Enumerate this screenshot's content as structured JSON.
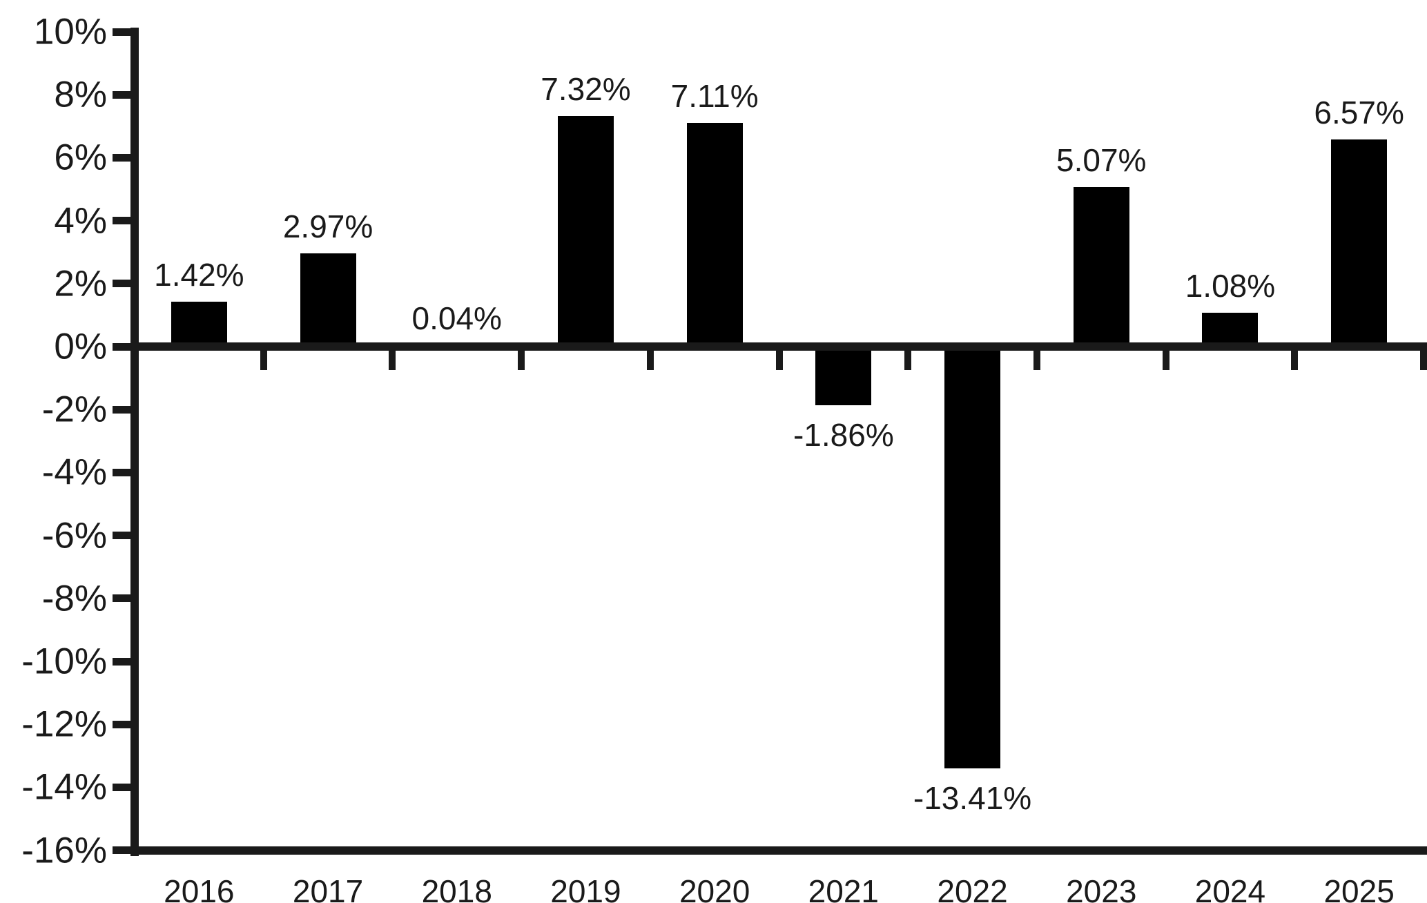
{
  "chart_data": {
    "type": "bar",
    "title": "",
    "xlabel": "",
    "ylabel": "",
    "categories": [
      "2016",
      "2017",
      "2018",
      "2019",
      "2020",
      "2021",
      "2022",
      "2023",
      "2024",
      "2025"
    ],
    "values": [
      1.42,
      2.97,
      0.04,
      7.32,
      7.11,
      -1.86,
      -13.41,
      5.07,
      1.08,
      6.57
    ],
    "bar_labels": [
      "1.42%",
      "2.97%",
      "0.04%",
      "7.32%",
      "7.11%",
      "-1.86%",
      "-13.41%",
      "5.07%",
      "1.08%",
      "6.57%"
    ],
    "ylim": [
      -16,
      10
    ],
    "ytick_step": 2,
    "ytick_labels": [
      "10%",
      "8%",
      "6%",
      "4%",
      "2%",
      "0%",
      "-2%",
      "-4%",
      "-6%",
      "-8%",
      "-10%",
      "-12%",
      "-14%",
      "-16%"
    ],
    "ytick_values": [
      10,
      8,
      6,
      4,
      2,
      0,
      -2,
      -4,
      -6,
      -8,
      -10,
      -12,
      -14,
      -16
    ],
    "grid": false,
    "legend": null,
    "bar_color": "#000000",
    "axis_color": "#1a1a1a",
    "background_color": "#ffffff"
  }
}
